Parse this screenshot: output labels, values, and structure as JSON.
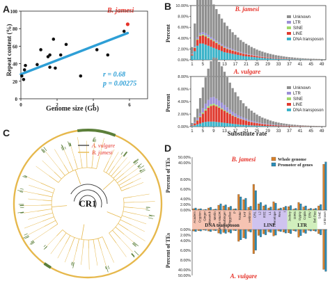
{
  "panels": {
    "A": "A",
    "B": "B",
    "C": "C",
    "D": "D"
  },
  "colors": {
    "unknown": "#8f8f8f",
    "ltr": "#9b8fd6",
    "sine": "#9fd86a",
    "line": "#e03a2f",
    "dna": "#3bb3c9",
    "fit": "#2e9fd6",
    "red": "#e6332a",
    "orange": "#d9822b",
    "blue": "#2a8db8",
    "green": "#5c7f3a",
    "gold": "#e6b84c"
  },
  "chart_data": [
    {
      "type": "scatter",
      "xlabel": "Genome size (Gb)",
      "ylabel": "Repeat content (%)",
      "xlim": [
        0,
        7
      ],
      "ylim": [
        0,
        100
      ],
      "xticks": [
        "0",
        "2",
        "4",
        "6"
      ],
      "yticks": [
        "0",
        "20",
        "40",
        "60",
        "80",
        "100"
      ],
      "points": [
        [
          0.05,
          26
        ],
        [
          0.15,
          22
        ],
        [
          0.2,
          33
        ],
        [
          0.25,
          38
        ],
        [
          0.9,
          39
        ],
        [
          1.1,
          56
        ],
        [
          1.5,
          48
        ],
        [
          1.6,
          50
        ],
        [
          1.6,
          36
        ],
        [
          1.8,
          68
        ],
        [
          1.9,
          35
        ],
        [
          2.2,
          50
        ],
        [
          2.5,
          62
        ],
        [
          3.3,
          26
        ],
        [
          4.2,
          56
        ],
        [
          4.8,
          50
        ],
        [
          5.7,
          77
        ]
      ],
      "highlight": {
        "label": "B. jamesi",
        "x": 5.9,
        "y": 85
      },
      "fit": {
        "x0": 0.0,
        "y0": 28,
        "x1": 5.9,
        "y1": 75
      },
      "stats": {
        "r": "r = 0.68",
        "p": "p = 0.00275"
      }
    },
    {
      "type": "bar",
      "title": "B. jamesi",
      "ylabel": "Percent",
      "ylim": [
        0,
        10
      ],
      "yticks": [
        "0.00%",
        "2.00%",
        "4.00%",
        "6.00%",
        "8.00%",
        "10.00%"
      ],
      "xticks": [
        "1",
        "5",
        "9",
        "13",
        "17",
        "21",
        "25",
        "29",
        "33",
        "37",
        "41",
        "45",
        "49"
      ],
      "series": [
        {
          "name": "Unknown",
          "values": [
            1.2,
            4.2,
            7.5,
            9.4,
            9.0,
            8.2,
            7.6,
            6.9,
            6.3,
            5.8,
            5.2,
            4.7,
            4.3,
            3.9,
            3.5,
            3.1,
            2.8,
            2.5,
            2.2,
            2.0,
            1.8,
            1.6,
            1.4,
            1.25,
            1.1,
            1.0,
            0.9,
            0.8,
            0.72,
            0.65,
            0.58,
            0.52,
            0.47,
            0.42,
            0.38,
            0.34,
            0.3,
            0.27,
            0.24,
            0.21,
            0.19,
            0.17,
            0.15,
            0.13,
            0.12,
            0.11,
            0.1,
            0.09,
            0.08,
            0.07
          ]
        },
        {
          "name": "LTR",
          "values": [
            0.1,
            0.2,
            0.3,
            0.35,
            0.4,
            0.4,
            0.4,
            0.35,
            0.35,
            0.3,
            0.3,
            0.28,
            0.26,
            0.24,
            0.22,
            0.2,
            0.18,
            0.16,
            0.15,
            0.14,
            0.12,
            0.11,
            0.1,
            0.09,
            0.08,
            0.07,
            0.06,
            0.05,
            0.05,
            0.04,
            0.04,
            0.03,
            0.03,
            0.03,
            0.02,
            0.02,
            0.02,
            0.02,
            0.02,
            0.01,
            0.01,
            0.01,
            0.01,
            0.01,
            0.01,
            0.01,
            0.01,
            0.01,
            0.01,
            0.01
          ]
        },
        {
          "name": "SINE",
          "values": [
            0.05,
            0.1,
            0.15,
            0.2,
            0.2,
            0.2,
            0.2,
            0.18,
            0.16,
            0.15,
            0.14,
            0.12,
            0.11,
            0.1,
            0.09,
            0.08,
            0.07,
            0.06,
            0.05,
            0.05,
            0.04,
            0.04,
            0.03,
            0.03,
            0.03,
            0.02,
            0.02,
            0.02,
            0.02,
            0.01,
            0.01,
            0.01,
            0.01,
            0.01,
            0.01,
            0.01,
            0.01,
            0.01,
            0.01,
            0.01,
            0.01,
            0.01,
            0.01,
            0.01,
            0.01,
            0.01,
            0.01,
            0.01,
            0.01,
            0.01
          ]
        },
        {
          "name": "LINE",
          "values": [
            0.2,
            0.6,
            1.1,
            1.4,
            1.5,
            1.5,
            1.4,
            1.3,
            1.2,
            1.1,
            1.0,
            0.9,
            0.8,
            0.7,
            0.65,
            0.6,
            0.55,
            0.5,
            0.45,
            0.4,
            0.36,
            0.32,
            0.29,
            0.26,
            0.23,
            0.2,
            0.18,
            0.16,
            0.14,
            0.12,
            0.11,
            0.1,
            0.09,
            0.08,
            0.07,
            0.06,
            0.05,
            0.05,
            0.04,
            0.04,
            0.03,
            0.03,
            0.03,
            0.02,
            0.02,
            0.02,
            0.02,
            0.02,
            0.01,
            0.01
          ]
        },
        {
          "name": "DNA transposon",
          "values": [
            0.8,
            1.6,
            2.6,
            3.0,
            3.0,
            2.8,
            2.6,
            2.4,
            2.2,
            2.0,
            1.8,
            1.6,
            1.4,
            1.3,
            1.2,
            1.1,
            1.0,
            0.9,
            0.8,
            0.7,
            0.65,
            0.6,
            0.55,
            0.5,
            0.45,
            0.4,
            0.36,
            0.32,
            0.29,
            0.26,
            0.23,
            0.2,
            0.18,
            0.16,
            0.14,
            0.12,
            0.11,
            0.1,
            0.09,
            0.08,
            0.07,
            0.06,
            0.05,
            0.05,
            0.04,
            0.04,
            0.03,
            0.03,
            0.03,
            0.02
          ]
        }
      ]
    },
    {
      "type": "bar",
      "title": "A. vulgare",
      "ylabel": "Percent",
      "xlabel": "Substitute rate",
      "ylim": [
        0,
        8
      ],
      "yticks": [
        "0.00%",
        "2.00%",
        "4.00%",
        "6.00%",
        "8.00%"
      ],
      "xticks": [
        "1",
        "5",
        "9",
        "13",
        "17",
        "21",
        "25",
        "29",
        "33",
        "37",
        "41",
        "45",
        "49"
      ],
      "series": [
        {
          "name": "Unknown",
          "values": [
            0.3,
            0.8,
            1.5,
            2.4,
            3.3,
            4.2,
            5.0,
            5.8,
            6.3,
            6.5,
            6.2,
            5.8,
            5.3,
            4.8,
            4.3,
            3.8,
            3.4,
            3.0,
            2.6,
            2.3,
            2.0,
            1.8,
            1.6,
            1.4,
            1.2,
            1.05,
            0.9,
            0.8,
            0.7,
            0.6,
            0.52,
            0.45,
            0.4,
            0.35,
            0.3,
            0.26,
            0.22,
            0.19,
            0.17,
            0.15,
            0.13,
            0.11,
            0.1,
            0.09,
            0.08,
            0.07,
            0.06,
            0.05,
            0.05,
            0.04
          ]
        },
        {
          "name": "LTR",
          "values": [
            0.05,
            0.15,
            0.3,
            0.5,
            0.7,
            0.9,
            1.0,
            1.1,
            1.1,
            1.0,
            0.95,
            0.9,
            0.8,
            0.7,
            0.6,
            0.5,
            0.45,
            0.4,
            0.35,
            0.3,
            0.26,
            0.22,
            0.19,
            0.17,
            0.15,
            0.13,
            0.11,
            0.1,
            0.09,
            0.08,
            0.07,
            0.06,
            0.05,
            0.04,
            0.04,
            0.03,
            0.03,
            0.02,
            0.02,
            0.02,
            0.02,
            0.01,
            0.01,
            0.01,
            0.01,
            0.01,
            0.01,
            0.01,
            0.01,
            0.01
          ]
        },
        {
          "name": "SINE",
          "values": [
            0.02,
            0.05,
            0.1,
            0.15,
            0.2,
            0.22,
            0.25,
            0.25,
            0.24,
            0.22,
            0.2,
            0.18,
            0.16,
            0.14,
            0.12,
            0.1,
            0.09,
            0.08,
            0.07,
            0.06,
            0.05,
            0.04,
            0.04,
            0.03,
            0.03,
            0.02,
            0.02,
            0.02,
            0.02,
            0.01,
            0.01,
            0.01,
            0.01,
            0.01,
            0.01,
            0.01,
            0.01,
            0.01,
            0.01,
            0.01,
            0.01,
            0.01,
            0.01,
            0.01,
            0.01,
            0.01,
            0.01,
            0.01,
            0.01,
            0.01
          ]
        },
        {
          "name": "LINE",
          "values": [
            0.1,
            0.3,
            0.6,
            1.0,
            1.4,
            1.8,
            2.2,
            2.5,
            2.6,
            2.5,
            2.3,
            2.1,
            1.9,
            1.7,
            1.5,
            1.3,
            1.15,
            1.0,
            0.9,
            0.8,
            0.7,
            0.6,
            0.52,
            0.45,
            0.4,
            0.35,
            0.3,
            0.26,
            0.23,
            0.2,
            0.17,
            0.15,
            0.13,
            0.11,
            0.1,
            0.09,
            0.08,
            0.07,
            0.06,
            0.05,
            0.04,
            0.04,
            0.03,
            0.03,
            0.02,
            0.02,
            0.02,
            0.02,
            0.01,
            0.01
          ]
        },
        {
          "name": "DNA transposon",
          "values": [
            0.1,
            0.2,
            0.35,
            0.5,
            0.65,
            0.75,
            0.8,
            0.8,
            0.8,
            0.75,
            0.7,
            0.65,
            0.6,
            0.55,
            0.5,
            0.45,
            0.4,
            0.35,
            0.3,
            0.27,
            0.24,
            0.21,
            0.19,
            0.17,
            0.15,
            0.13,
            0.11,
            0.1,
            0.09,
            0.08,
            0.07,
            0.06,
            0.05,
            0.05,
            0.04,
            0.04,
            0.03,
            0.03,
            0.03,
            0.02,
            0.02,
            0.02,
            0.02,
            0.01,
            0.01,
            0.01,
            0.01,
            0.01,
            0.01,
            0.01
          ]
        }
      ]
    },
    {
      "type": "bar",
      "top_title": "B. jamesi",
      "bottom_title": "A. vulgare",
      "ylabel": "Percent of TEs",
      "yticks_top": [
        "50.00%",
        "40.00%",
        "8.00%",
        "6.00%",
        "4.00%",
        "2.00%",
        "0.00%"
      ],
      "yticks_bottom": [
        "0.00%",
        "2.00%",
        "4.00%",
        "6.00%",
        "8.00%",
        "40.00%",
        "50.00%"
      ],
      "legend": [
        "Whole genome",
        "Promoter of genes"
      ],
      "categories": [
        "Academ",
        "Crypton",
        "Ginger",
        "Mavarick",
        "Merlin",
        "MULE-MuDR",
        "PIF-Harbinger",
        "PiggyBac",
        "P",
        "TcMar",
        "hAT",
        "Helitron",
        "CR1",
        "L2",
        "RTE",
        "L1",
        "Penelope",
        "Rex",
        "I",
        "Jockey",
        "DIRS",
        "Gypsy",
        "Copia",
        "ERV",
        "Bel-Pao",
        "SINE",
        "Unknown"
      ],
      "groups": [
        {
          "label": "DNA transposon",
          "start": 0,
          "end": 11
        },
        {
          "label": "LINE",
          "start": 12,
          "end": 18
        },
        {
          "label": "LTR",
          "start": 19,
          "end": 24
        }
      ],
      "series": [
        {
          "name": "Whole genome",
          "top": [
            0.4,
            0.3,
            0.1,
            0.6,
            0.2,
            1.4,
            1.2,
            0.8,
            0.3,
            4.5,
            3.0,
            0.8,
            7.4,
            1.8,
            1.2,
            0.6,
            2.4,
            0.4,
            0.8,
            1.0,
            0.3,
            2.2,
            0.9,
            0.3,
            0.3,
            1.2,
            40
          ],
          "bottom": [
            0.5,
            0.4,
            0.2,
            0.5,
            0.3,
            1.2,
            1.0,
            0.9,
            0.3,
            4.0,
            2.8,
            0.6,
            9.0,
            2.0,
            1.5,
            0.8,
            2.2,
            0.5,
            0.9,
            1.1,
            0.4,
            2.6,
            1.0,
            0.3,
            0.4,
            1.4,
            42
          ]
        },
        {
          "name": "Promoter of genes",
          "top": [
            0.6,
            0.4,
            0.2,
            0.8,
            0.3,
            1.8,
            1.5,
            1.1,
            0.4,
            3.8,
            3.4,
            1.1,
            5.6,
            2.2,
            1.5,
            0.9,
            2.0,
            0.6,
            1.1,
            1.3,
            0.5,
            1.8,
            1.2,
            0.5,
            0.5,
            1.6,
            44
          ],
          "bottom": [
            0.7,
            0.5,
            0.3,
            0.7,
            0.4,
            1.5,
            1.3,
            1.2,
            0.4,
            3.5,
            3.1,
            0.9,
            7.0,
            2.5,
            1.8,
            1.0,
            1.9,
            0.7,
            1.2,
            1.4,
            0.6,
            2.1,
            1.3,
            0.5,
            0.6,
            1.8,
            46
          ]
        }
      ]
    }
  ],
  "treeC": {
    "center_label": "CR1",
    "legend": [
      "A. vulgare",
      "B. jamesi"
    ]
  }
}
